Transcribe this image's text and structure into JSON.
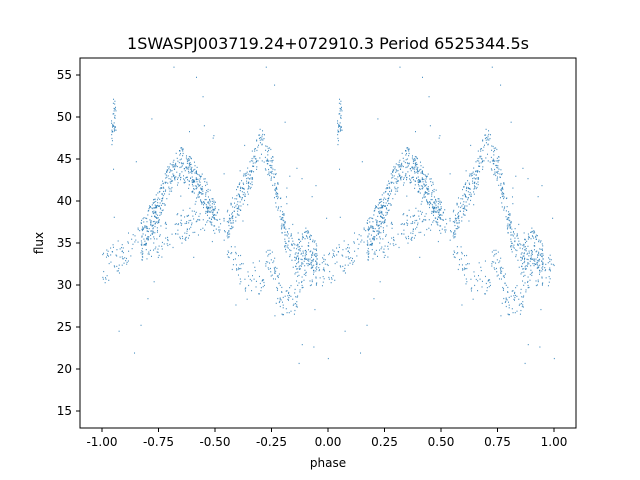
{
  "chart_data": {
    "type": "scatter",
    "title": "1SWASPJ003719.24+072910.3 Period 6525344.5s",
    "xlabel": "phase",
    "ylabel": "flux",
    "xlim": [
      -1.1,
      1.1
    ],
    "ylim": [
      13,
      57
    ],
    "xticks": [
      "-1.00",
      "-0.75",
      "-0.50",
      "-0.25",
      "0.00",
      "0.25",
      "0.50",
      "0.75",
      "1.00"
    ],
    "xtick_values": [
      -1,
      -0.75,
      -0.5,
      -0.25,
      0,
      0.25,
      0.5,
      0.75,
      1
    ],
    "yticks": [
      "15",
      "20",
      "25",
      "30",
      "35",
      "40",
      "45",
      "50",
      "55"
    ],
    "ytick_values": [
      15,
      20,
      25,
      30,
      35,
      40,
      45,
      50,
      55
    ],
    "grid": false,
    "color": "#1f77b4",
    "series": [
      {
        "branch": "lower",
        "points": [
          [
            0.0,
            32
          ],
          [
            0.05,
            33
          ],
          [
            0.1,
            34
          ],
          [
            0.15,
            35
          ],
          [
            0.2,
            35
          ],
          [
            0.25,
            35
          ],
          [
            0.3,
            36
          ],
          [
            0.35,
            37
          ],
          [
            0.4,
            38
          ],
          [
            0.45,
            38.5
          ],
          [
            0.5,
            39
          ],
          [
            0.55,
            35
          ],
          [
            0.6,
            32
          ],
          [
            0.65,
            31
          ],
          [
            0.7,
            31
          ],
          [
            0.75,
            33
          ],
          [
            0.78,
            30
          ],
          [
            0.8,
            28
          ],
          [
            0.85,
            28
          ],
          [
            0.88,
            31
          ],
          [
            0.9,
            32
          ],
          [
            0.95,
            32
          ],
          [
            1.0,
            31
          ]
        ]
      },
      {
        "branch": "upper",
        "points": [
          [
            0.17,
            36
          ],
          [
            0.22,
            38
          ],
          [
            0.25,
            39.5
          ],
          [
            0.3,
            43
          ],
          [
            0.35,
            44.5
          ],
          [
            0.4,
            43
          ],
          [
            0.45,
            41
          ],
          [
            0.5,
            38
          ]
        ]
      },
      {
        "branch": "upper2",
        "points": [
          [
            0.55,
            37
          ],
          [
            0.6,
            40
          ],
          [
            0.65,
            43
          ],
          [
            0.7,
            47
          ],
          [
            0.75,
            44
          ],
          [
            0.8,
            37
          ],
          [
            0.85,
            33
          ],
          [
            0.9,
            35
          ],
          [
            0.95,
            33
          ]
        ]
      },
      {
        "branch": "spike",
        "points": [
          [
            0.04,
            48
          ],
          [
            0.05,
            51
          ],
          [
            0.06,
            49
          ]
        ]
      }
    ]
  }
}
